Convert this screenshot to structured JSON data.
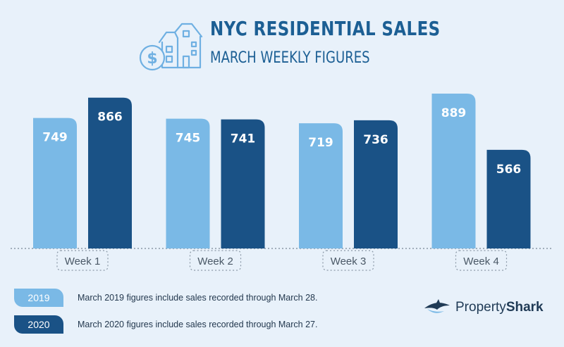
{
  "header": {
    "title": "NYC RESIDENTIAL SALES",
    "subtitle": "MARCH WEEKLY FIGURES"
  },
  "chart_data": {
    "type": "bar",
    "categories": [
      "Week 1",
      "Week 2",
      "Week 3",
      "Week 4"
    ],
    "series": [
      {
        "name": "2019",
        "values": [
          749,
          745,
          719,
          889
        ],
        "color": "#7ab9e6"
      },
      {
        "name": "2020",
        "values": [
          866,
          741,
          736,
          566
        ],
        "color": "#1a5286"
      }
    ],
    "ylim": [
      0,
      889
    ],
    "grid": false,
    "legend_position": "bottom-left"
  },
  "legend": [
    {
      "label": "2019",
      "note": "March 2019 figures include sales recorded through March 28.",
      "color": "#7ab9e6"
    },
    {
      "label": "2020",
      "note": "March 2020 figures include sales recorded through March 27.",
      "color": "#1a5286"
    }
  ],
  "brand": {
    "name_light": "Property",
    "name_bold": "Shark"
  },
  "icons": {
    "header_icon": "house-dollar-icon",
    "brand_icon": "shark-logo-icon"
  }
}
